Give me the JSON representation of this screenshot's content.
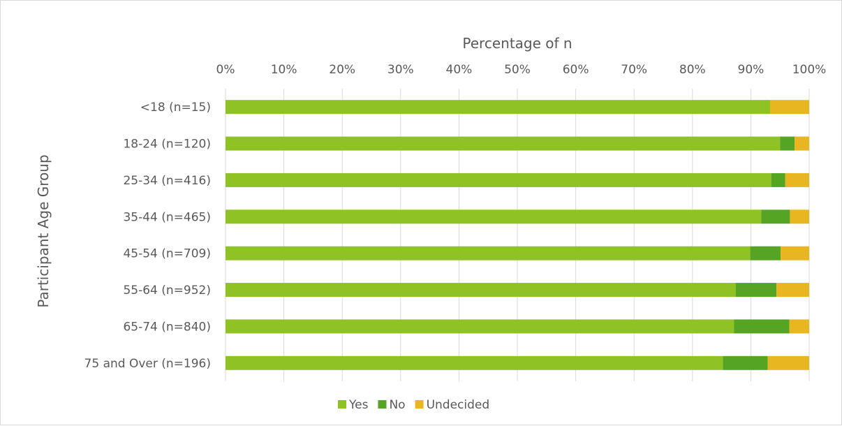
{
  "chart_data": {
    "type": "bar",
    "orientation": "horizontal",
    "stacked": "percent",
    "xlabel": "Percentage of n",
    "ylabel": "Participant Age Group",
    "xlim": [
      0,
      100
    ],
    "x_ticks": [
      "0%",
      "10%",
      "20%",
      "30%",
      "40%",
      "50%",
      "60%",
      "70%",
      "80%",
      "90%",
      "100%"
    ],
    "x_axis_position": "top",
    "grid": "vertical",
    "legend_position": "bottom",
    "categories": [
      "<18 (n=15)",
      "18-24 (n=120)",
      "25-34 (n=416)",
      "35-44 (n=465)",
      "45-54 (n=709)",
      "55-64 (n=952)",
      "65-74 (n=840)",
      "75 and Over (n=196)"
    ],
    "series": [
      {
        "name": "Yes",
        "color": "#8fc224",
        "values": [
          93.3,
          95.0,
          93.5,
          91.8,
          89.9,
          87.4,
          87.1,
          85.2
        ]
      },
      {
        "name": "No",
        "color": "#55a423",
        "values": [
          0.0,
          2.5,
          2.4,
          4.9,
          5.2,
          7.0,
          9.5,
          7.7
        ]
      },
      {
        "name": "Undecided",
        "color": "#e8b621",
        "values": [
          6.7,
          2.5,
          4.1,
          3.3,
          4.9,
          5.6,
          3.4,
          7.1
        ]
      }
    ]
  }
}
